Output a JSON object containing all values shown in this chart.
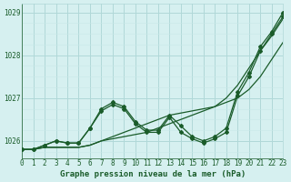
{
  "bg_color": "#d6f0f0",
  "grid_color_major": "#b0d8d8",
  "grid_color_minor": "#c8e8e8",
  "line_color": "#1a5c2a",
  "marker_color": "#1a5c2a",
  "title": "Graphe pression niveau de la mer (hPa)",
  "ylabel": "",
  "xlabel": "Graphe pression niveau de la mer (hPa)",
  "xlim": [
    0,
    23
  ],
  "ylim": [
    1025.6,
    1029.2
  ],
  "yticks": [
    1026,
    1027,
    1028,
    1029
  ],
  "xticks": [
    0,
    1,
    2,
    3,
    4,
    5,
    6,
    7,
    8,
    9,
    10,
    11,
    12,
    13,
    14,
    15,
    16,
    17,
    18,
    19,
    20,
    21,
    22,
    23
  ],
  "series": [
    [
      1025.8,
      1025.8,
      1025.9,
      1026.0,
      1025.95,
      1025.95,
      1026.3,
      1026.7,
      1026.85,
      1026.75,
      1026.4,
      1026.2,
      1026.2,
      1026.55,
      1026.2,
      1026.05,
      1025.95,
      1026.05,
      1026.2,
      1027.05,
      1027.5,
      1028.1,
      1028.5,
      1028.9
    ],
    [
      1025.8,
      1025.8,
      1025.9,
      1026.0,
      1025.95,
      1025.95,
      1026.3,
      1026.75,
      1026.9,
      1026.8,
      1026.45,
      1026.25,
      1026.25,
      1026.6,
      1026.35,
      1026.1,
      1026.0,
      1026.1,
      1026.3,
      1027.15,
      1027.6,
      1028.2,
      1028.55,
      1029.0
    ],
    [
      1025.8,
      1025.8,
      1025.85,
      1025.85,
      1025.85,
      1025.85,
      1025.9,
      1026.0,
      1026.05,
      1026.1,
      1026.15,
      1026.2,
      1026.3,
      1026.4,
      1026.5,
      1026.6,
      1026.7,
      1026.8,
      1026.9,
      1027.0,
      1027.2,
      1027.5,
      1027.9,
      1028.3
    ],
    [
      1025.8,
      1025.8,
      1025.85,
      1025.85,
      1025.85,
      1025.85,
      1025.9,
      1026.0,
      1026.1,
      1026.2,
      1026.3,
      1026.4,
      1026.5,
      1026.6,
      1026.65,
      1026.7,
      1026.75,
      1026.8,
      1027.0,
      1027.3,
      1027.7,
      1028.1,
      1028.45,
      1028.85
    ]
  ]
}
